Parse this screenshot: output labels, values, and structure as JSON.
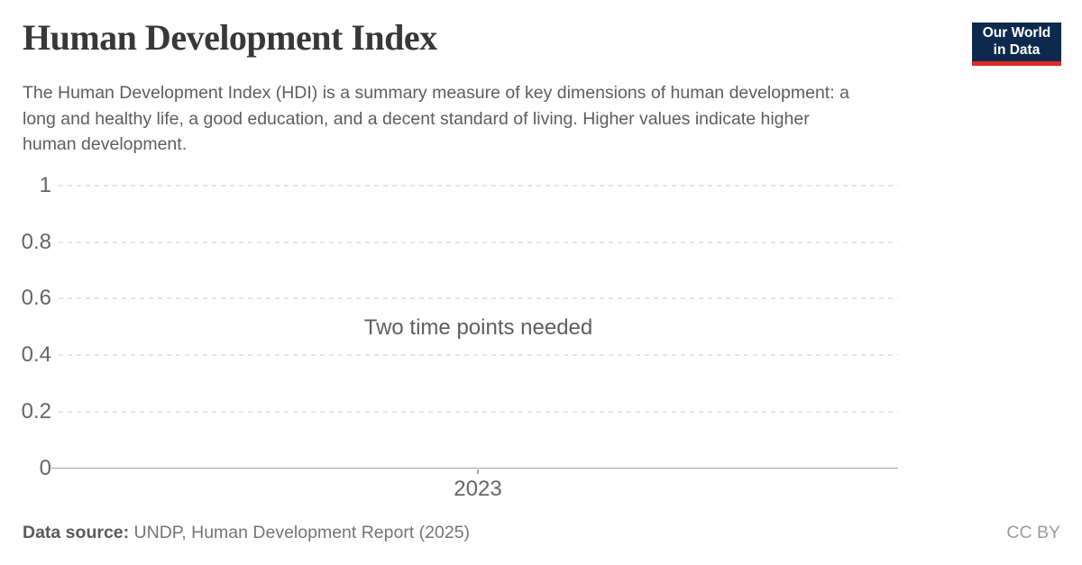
{
  "header": {
    "title": "Human Development Index",
    "logo": {
      "line1": "Our World",
      "line2": "in Data"
    },
    "subtitle_lines": [
      "The Human Development Index (HDI) is a summary measure of key dimensions of human development: a",
      "long and healthy life, a good education, and a decent standard of living. Higher values indicate higher",
      "human development."
    ]
  },
  "chart_data": {
    "type": "line",
    "title": "Human Development Index",
    "series": [],
    "message": "Two time points needed",
    "x_ticks": [
      "2023"
    ],
    "y_ticks": [
      0,
      0.2,
      0.4,
      0.6,
      0.8,
      1
    ],
    "y_tick_labels": [
      "0",
      "0.2",
      "0.4",
      "0.6",
      "0.8",
      "1"
    ],
    "ylim": [
      0,
      1
    ],
    "grid": "horizontal-dashed",
    "legend": "none"
  },
  "footer": {
    "datasource_label": "Data source:",
    "datasource_value": "UNDP, Human Development Report (2025)",
    "license": "CC BY"
  },
  "colors": {
    "logo_navy": "#0d2a4e",
    "logo_red": "#dc2c27",
    "title_text": "#383838",
    "subtitle_text": "#5e5e5e",
    "gridline": "#e5e5e5",
    "axis_line": "#a6a6a6",
    "tick_label": "#666666",
    "background": "#ffffff"
  }
}
